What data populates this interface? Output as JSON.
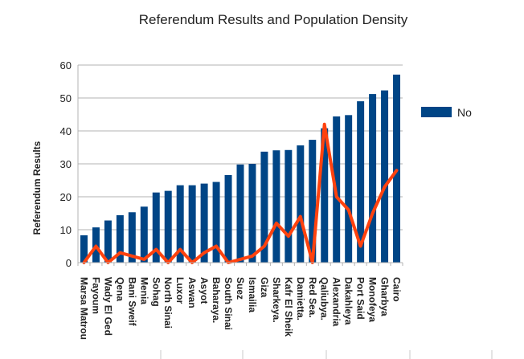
{
  "chart_data": {
    "type": "bar",
    "title": "Referendum Results and Population Density",
    "xlabel": "",
    "ylabel": "Referendum Results",
    "ylim": [
      0,
      60
    ],
    "yticks": [
      0,
      10,
      20,
      30,
      40,
      50,
      60
    ],
    "grid": true,
    "legend_position": "right",
    "categories": [
      "Marsa Matrouh",
      "Fayoum",
      "Wady El Gedid",
      "Qena",
      "Bani Sweif",
      "Menia",
      "Sohag",
      "North Sinai",
      "Luxor",
      "Aswan",
      "Asyot",
      "Baharaya",
      "South Sinai",
      "Suez",
      "Ismailia",
      "Giza",
      "Sharkeya",
      "Kafr El Sheikh",
      "Damietta",
      "Red Sea",
      "Qaliubya",
      "Alexandria",
      "Dakahleya",
      "Port Said",
      "Monofeya",
      "Gharbya",
      "Cairo"
    ],
    "category_labels": [
      "Marsa Matrou",
      "Fayoum",
      "Wady El Ged",
      "Qena",
      "Bani Sweif",
      "Menia",
      "Sohag",
      "North Sinai",
      "Luxor",
      "Aswan",
      "Asyot",
      "Baharaya.",
      "South Sinai",
      "Suez",
      "Ismailia",
      "Giza",
      "Sharkeya.",
      "Kafr El Sheik",
      "Damietta.",
      "Red Sea.",
      "Qaliubya.",
      "Alexandria",
      "Dakahleya",
      "Port Said",
      "Monofeya",
      "Gharbya",
      "Cairo"
    ],
    "series": [
      {
        "name": "No",
        "type": "bar",
        "color": "#004586",
        "values": [
          8.3,
          10.7,
          12.8,
          14.4,
          15.3,
          17.0,
          21.3,
          21.8,
          23.5,
          23.5,
          24.0,
          24.5,
          26.6,
          29.8,
          30.0,
          33.7,
          34.1,
          34.2,
          35.6,
          37.3,
          40.8,
          44.4,
          44.8,
          49.0,
          51.2,
          52.3,
          57.1
        ]
      },
      {
        "type": "line",
        "color": "#ff420e",
        "values": [
          0,
          5,
          0,
          3,
          2,
          1,
          4,
          0,
          4,
          0,
          3,
          5,
          0,
          1,
          2,
          5,
          12,
          8,
          14,
          0,
          42,
          20,
          16,
          5,
          15,
          23,
          28
        ]
      }
    ]
  }
}
